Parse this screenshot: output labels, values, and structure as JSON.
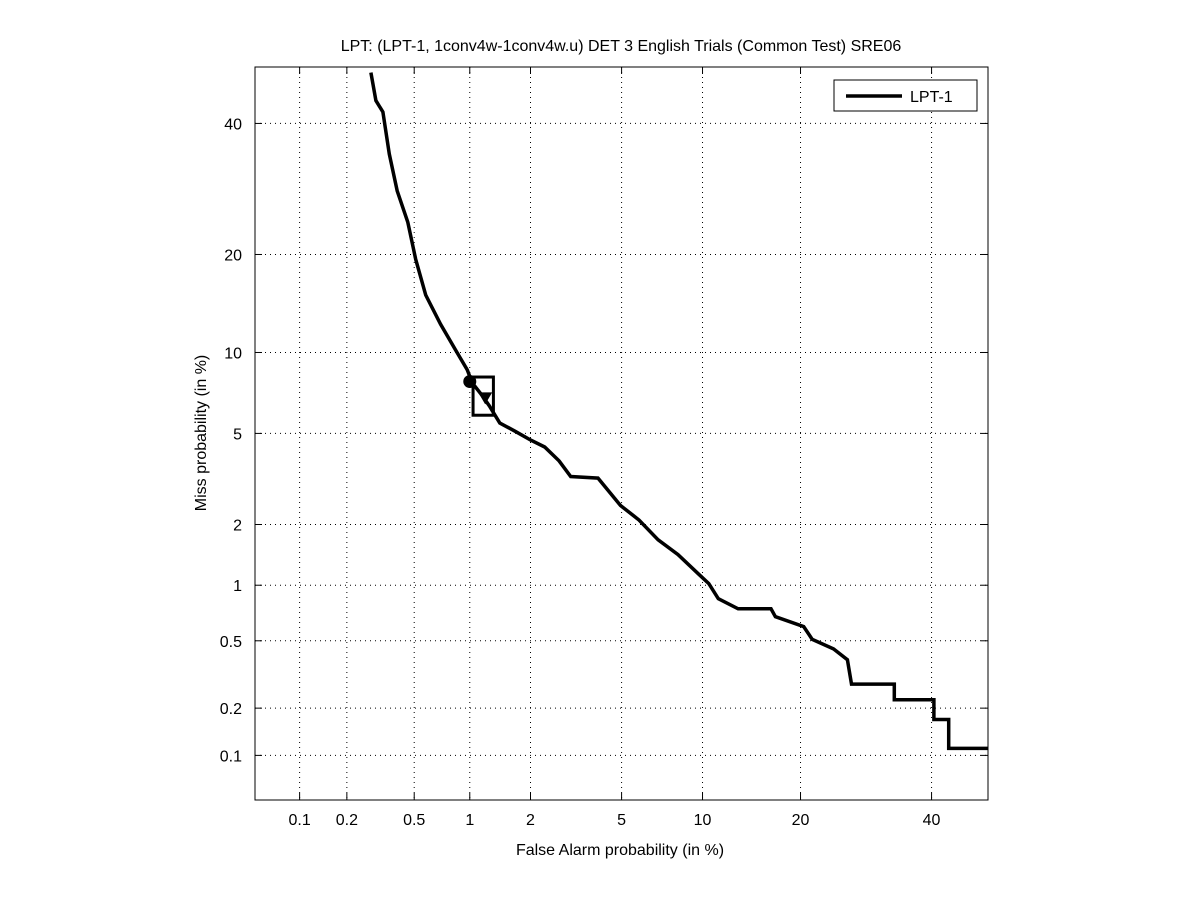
{
  "chart_data": {
    "type": "line",
    "title": "LPT: (LPT-1, 1conv4w-1conv4w.u) DET 3 English Trials (Common Test) SRE06",
    "xlabel": "False Alarm probability (in %)",
    "ylabel": "Miss probability (in %)",
    "xscale": "probit",
    "yscale": "probit",
    "xlim": [
      0.05,
      50
    ],
    "ylim": [
      0.05,
      50
    ],
    "xticks": [
      0.1,
      0.2,
      0.5,
      1,
      2,
      5,
      10,
      20,
      40
    ],
    "xtick_labels": [
      "0.1",
      "0.2",
      "0.5",
      "1",
      "2",
      "5",
      "10",
      "20",
      "40"
    ],
    "yticks": [
      0.1,
      0.2,
      0.5,
      1,
      2,
      5,
      10,
      20,
      40
    ],
    "ytick_labels": [
      "0.1",
      "0.2",
      "0.5",
      "1",
      "2",
      "5",
      "10",
      "20",
      "40"
    ],
    "grid": true,
    "legend": {
      "position": "top-right",
      "entries": [
        "LPT-1"
      ]
    },
    "series": [
      {
        "name": "LPT-1",
        "color": "#000000",
        "x": [
          0.28,
          0.3,
          0.33,
          0.36,
          0.4,
          0.46,
          0.51,
          0.58,
          0.7,
          0.85,
          0.97,
          1.03,
          1.16,
          1.26,
          1.42,
          1.69,
          2.0,
          2.33,
          2.71,
          3.05,
          4.0,
          4.95,
          5.86,
          6.93,
          8.2,
          9.7,
          10.5,
          11.3,
          13.1,
          16.5,
          17,
          20.4,
          21.5,
          24.4,
          26.4,
          27,
          33.7,
          33.7,
          40.4,
          40.4,
          43,
          43,
          50
        ],
        "y": [
          49,
          44,
          42,
          34.8,
          28.9,
          24.3,
          19.4,
          15.3,
          12.4,
          10.1,
          8.7,
          7.8,
          7.0,
          6.4,
          5.5,
          5.1,
          4.7,
          4.4,
          3.85,
          3.3,
          3.25,
          2.45,
          2.1,
          1.69,
          1.43,
          1.14,
          1.02,
          0.85,
          0.75,
          0.75,
          0.68,
          0.6,
          0.51,
          0.45,
          0.39,
          0.28,
          0.28,
          0.225,
          0.225,
          0.17,
          0.17,
          0.111,
          0.111
        ]
      }
    ],
    "markers": [
      {
        "name": "min-dcf-point",
        "shape": "circle",
        "x": 1.0,
        "y": 7.9
      },
      {
        "name": "actual-dcf-point",
        "shape": "triangle",
        "x": 1.2,
        "y": 6.9
      },
      {
        "name": "confidence-box",
        "shape": "box",
        "x": [
          1.04,
          1.32
        ],
        "y": [
          5.9,
          8.2
        ]
      }
    ]
  }
}
